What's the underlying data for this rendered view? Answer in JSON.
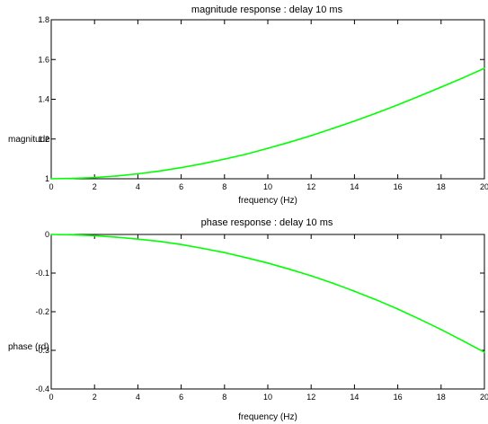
{
  "chart_data": [
    {
      "type": "line",
      "title": "magnitude response : delay 10 ms",
      "xlabel": "frequency (Hz)",
      "ylabel": "magnitude",
      "xlim": [
        0,
        20
      ],
      "ylim": [
        1,
        1.8
      ],
      "xticks": [
        0,
        2,
        4,
        6,
        8,
        10,
        12,
        14,
        16,
        18,
        20
      ],
      "xtick_labels": [
        "0",
        "2",
        "4",
        "6",
        "8",
        "10",
        "12",
        "14",
        "16",
        "18",
        "20"
      ],
      "yticks": [
        1,
        1.2,
        1.4,
        1.6,
        1.8
      ],
      "ytick_labels": [
        "1",
        "1.2",
        "1.4",
        "1.6",
        "1.8"
      ],
      "grid": false,
      "color": "#00ff00",
      "series": [
        {
          "x": [
            0,
            1,
            2,
            3,
            4,
            5,
            6,
            7,
            8,
            9,
            10,
            11,
            12,
            13,
            14,
            15,
            16,
            17,
            18,
            19,
            20
          ],
          "values": [
            1.0,
            1.002,
            1.006,
            1.014,
            1.025,
            1.039,
            1.056,
            1.076,
            1.099,
            1.124,
            1.153,
            1.184,
            1.217,
            1.253,
            1.29,
            1.33,
            1.372,
            1.416,
            1.461,
            1.507,
            1.556
          ]
        }
      ]
    },
    {
      "type": "line",
      "title": "phase response : delay 10 ms",
      "xlabel": "frequency (Hz)",
      "ylabel": "phase (rd)",
      "xlim": [
        0,
        20
      ],
      "ylim": [
        -0.4,
        0
      ],
      "xticks": [
        0,
        2,
        4,
        6,
        8,
        10,
        12,
        14,
        16,
        18,
        20
      ],
      "xtick_labels": [
        "0",
        "2",
        "4",
        "6",
        "8",
        "10",
        "12",
        "14",
        "16",
        "18",
        "20"
      ],
      "yticks": [
        -0.4,
        -0.3,
        -0.2,
        -0.1,
        0
      ],
      "ytick_labels": [
        "-0.4",
        "-0.3",
        "-0.2",
        "-0.1",
        "0"
      ],
      "grid": false,
      "color": "#00ff00",
      "series": [
        {
          "x": [
            0,
            1,
            2,
            3,
            4,
            5,
            6,
            7,
            8,
            9,
            10,
            11,
            12,
            13,
            14,
            15,
            16,
            17,
            18,
            19,
            20
          ],
          "values": [
            0,
            -0.001,
            -0.003,
            -0.007,
            -0.012,
            -0.018,
            -0.026,
            -0.036,
            -0.047,
            -0.06,
            -0.074,
            -0.09,
            -0.107,
            -0.126,
            -0.147,
            -0.169,
            -0.193,
            -0.219,
            -0.246,
            -0.275,
            -0.305
          ]
        }
      ]
    }
  ]
}
